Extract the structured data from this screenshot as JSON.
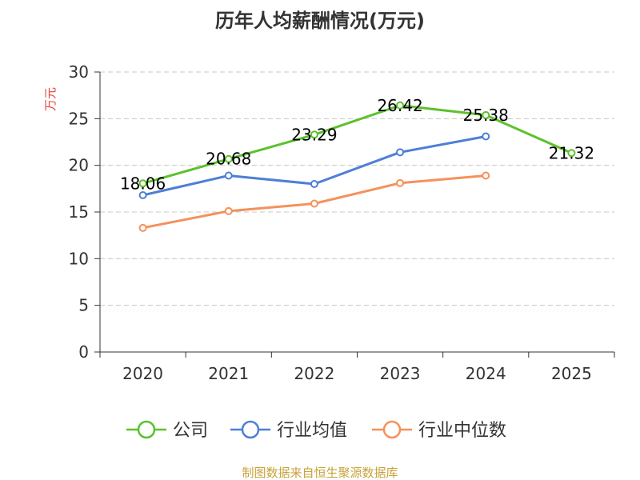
{
  "chart_data": {
    "type": "line",
    "title": "历年人均薪酬情况(万元)",
    "ylabel": "万元",
    "xlabel": "",
    "categories": [
      "2020",
      "2021",
      "2022",
      "2023",
      "2024",
      "2025"
    ],
    "ylim": [
      0,
      30
    ],
    "yticks": [
      0,
      5,
      10,
      15,
      20,
      25,
      30
    ],
    "grid": true,
    "legend_position": "bottom",
    "series": [
      {
        "name": "公司",
        "color": "#5cc12c",
        "values": [
          18.06,
          20.68,
          23.29,
          26.42,
          25.38,
          21.32
        ],
        "labels": [
          "18.06",
          "20.68",
          "23.29",
          "26.42",
          "25.38",
          "21.32"
        ]
      },
      {
        "name": "行业均值",
        "color": "#4e7fd6",
        "values": [
          16.8,
          18.9,
          18.0,
          21.4,
          23.1,
          null
        ]
      },
      {
        "name": "行业中位数",
        "color": "#f5915a",
        "values": [
          13.3,
          15.1,
          15.9,
          18.1,
          18.9,
          null
        ]
      }
    ]
  },
  "footer": {
    "source": "制图数据来自恒生聚源数据库"
  }
}
